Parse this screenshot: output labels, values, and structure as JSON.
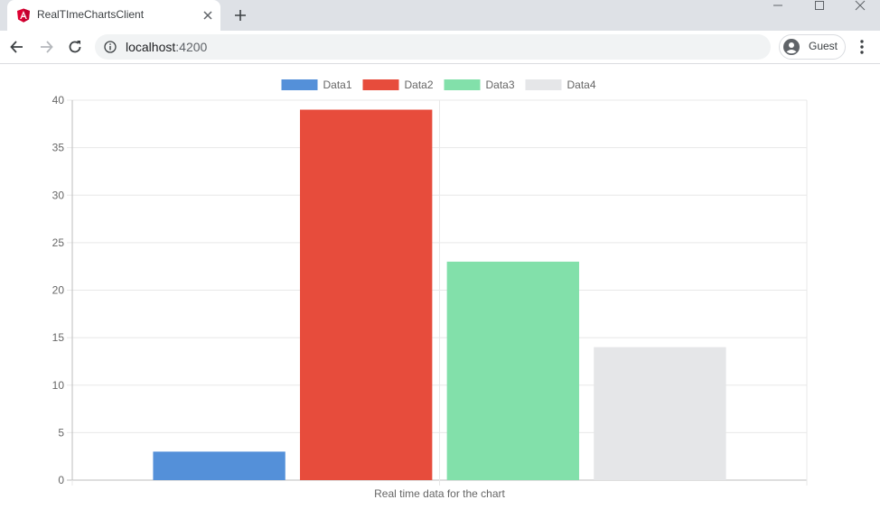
{
  "browser": {
    "tab_title": "RealTImeChartsClient",
    "url_host": "localhost",
    "url_port": ":4200",
    "profile_label": "Guest"
  },
  "chart_data": {
    "type": "bar",
    "categories": [
      ""
    ],
    "series": [
      {
        "name": "Data1",
        "values": [
          3
        ],
        "color": "#5490d9"
      },
      {
        "name": "Data2",
        "values": [
          39
        ],
        "color": "#e74c3c"
      },
      {
        "name": "Data3",
        "values": [
          23
        ],
        "color": "#82e0aa"
      },
      {
        "name": "Data4",
        "values": [
          14
        ],
        "color": "#e5e6e8"
      }
    ],
    "title": "",
    "xlabel": "Real time data for the chart",
    "ylabel": "",
    "ylim": [
      0,
      40
    ],
    "yticks": [
      0,
      5,
      10,
      15,
      20,
      25,
      30,
      35,
      40
    ],
    "grid": true,
    "legend": "top"
  }
}
